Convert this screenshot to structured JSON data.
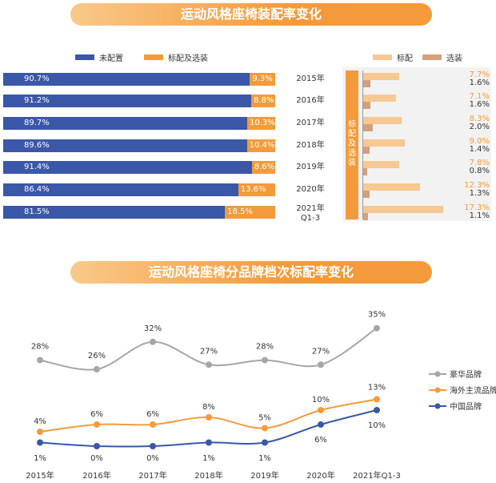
{
  "banner1": "运动风格座椅装配率变化",
  "banner2": "运动风格座椅分品牌档次标配率变化",
  "left_legend": {
    "a": "未配置",
    "b": "标配及选装"
  },
  "right_legend": {
    "a": "标配",
    "b": "选装"
  },
  "right_panel_label": "标配及选装",
  "chart_data": [
    {
      "type": "bar",
      "categories": [
        "2015年",
        "2016年",
        "2017年",
        "2018年",
        "2019年",
        "2020年",
        "2021年 Q1-3"
      ],
      "series": [
        {
          "name": "未配置",
          "values": [
            90.7,
            91.2,
            89.7,
            89.6,
            91.4,
            86.4,
            81.5
          ],
          "labels": [
            "90.7%",
            "91.2%",
            "89.7%",
            "89.6%",
            "91.4%",
            "86.4%",
            "81.5%"
          ],
          "color": "#3a57a8"
        },
        {
          "name": "标配及选装",
          "values": [
            9.3,
            8.8,
            10.3,
            10.4,
            8.6,
            13.6,
            18.5
          ],
          "labels": [
            "9.3%",
            "8.8%",
            "10.3%",
            "10.4%",
            "8.6%",
            "13.6%",
            "18.5%"
          ],
          "color": "#f39b3b"
        }
      ]
    },
    {
      "type": "bar",
      "categories": [
        "2015年",
        "2016年",
        "2017年",
        "2018年",
        "2019年",
        "2020年",
        "2021年 Q1-3"
      ],
      "series": [
        {
          "name": "标配",
          "values": [
            7.7,
            7.1,
            8.3,
            9.0,
            7.8,
            12.3,
            17.3
          ],
          "labels": [
            "7.7%",
            "7.1%",
            "8.3%",
            "9.0%",
            "7.8%",
            "12.3%",
            "17.3%"
          ],
          "color": "#f7c892"
        },
        {
          "name": "选装",
          "values": [
            1.6,
            1.6,
            2.0,
            1.4,
            0.8,
            1.3,
            1.1
          ],
          "labels": [
            "1.6%",
            "1.6%",
            "2.0%",
            "1.4%",
            "0.8%",
            "1.3%",
            "1.1%"
          ],
          "color": "#d4a07c"
        }
      ]
    },
    {
      "type": "line",
      "x": [
        "2015年",
        "2016年",
        "2017年",
        "2018年",
        "2019年",
        "2020年",
        "2021年Q1-3"
      ],
      "series": [
        {
          "name": "豪华品牌",
          "values": [
            28,
            26,
            32,
            27,
            28,
            27,
            35
          ],
          "labels": [
            "28%",
            "26%",
            "32%",
            "27%",
            "28%",
            "27%",
            "35%"
          ],
          "color": "#a6a6a6"
        },
        {
          "name": "海外主流品牌",
          "values": [
            4,
            6,
            6,
            8,
            5,
            10,
            13
          ],
          "labels": [
            "4%",
            "6%",
            "6%",
            "8%",
            "5%",
            "10%",
            "13%"
          ],
          "color": "#f39b3b"
        },
        {
          "name": "中国品牌",
          "values": [
            1,
            0,
            0,
            1,
            1,
            6,
            10
          ],
          "labels": [
            "1%",
            "0%",
            "0%",
            "1%",
            "1%",
            "6%",
            "10%"
          ],
          "color": "#3a57a8"
        }
      ]
    }
  ]
}
